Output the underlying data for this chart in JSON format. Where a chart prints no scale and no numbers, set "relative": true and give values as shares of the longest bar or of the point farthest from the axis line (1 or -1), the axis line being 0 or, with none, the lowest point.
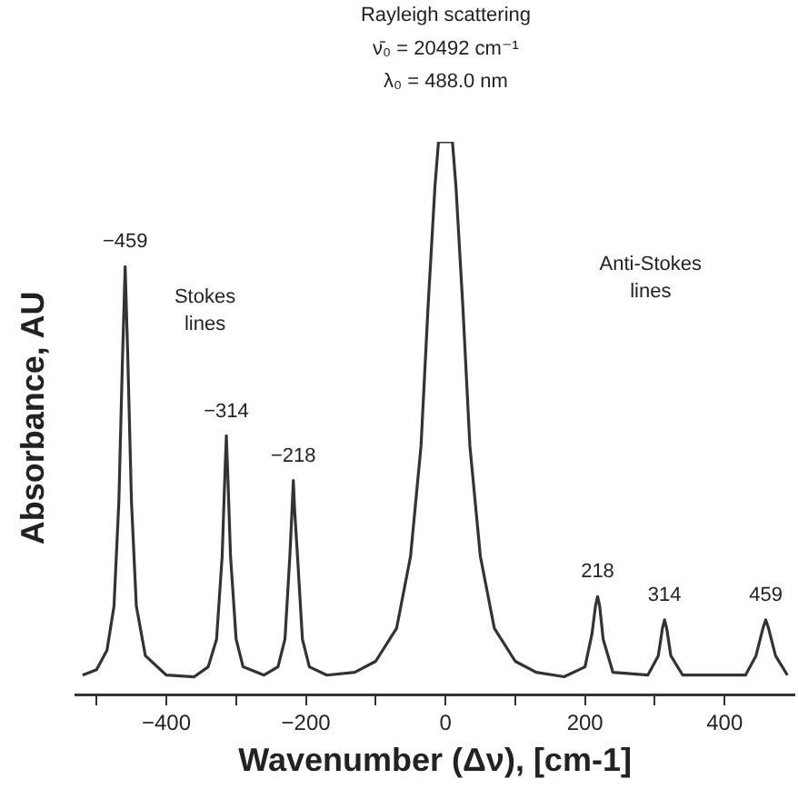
{
  "chart_data": {
    "type": "line",
    "relative": true,
    "xlabel": "Wavenumber (Δν), [cm-1]",
    "ylabel": "Absorbance, AU",
    "xlim": [
      -530,
      500
    ],
    "xticks": [
      {
        "value": -500,
        "label": null
      },
      -400,
      {
        "value": -300,
        "label": null
      },
      -200,
      {
        "value": -100,
        "label": null
      },
      0,
      {
        "value": 100,
        "label": null
      },
      200,
      {
        "value": 300,
        "label": null
      },
      400
    ],
    "x": [
      -520,
      -500,
      -485,
      -475,
      -468,
      -463,
      -459,
      -455,
      -450,
      -443,
      -430,
      -400,
      -360,
      -340,
      -328,
      -320,
      -316,
      -314,
      -312,
      -308,
      -300,
      -290,
      -260,
      -240,
      -230,
      -223,
      -220,
      -218,
      -216,
      -212,
      -205,
      -195,
      -170,
      -130,
      -100,
      -70,
      -50,
      -35,
      -25,
      -15,
      -10,
      10,
      15,
      25,
      35,
      50,
      70,
      100,
      130,
      170,
      200,
      210,
      215,
      218,
      221,
      226,
      240,
      290,
      305,
      311,
      314,
      317,
      323,
      340,
      430,
      445,
      455,
      459,
      463,
      473,
      490
    ],
    "series": [
      {
        "color": "#333333",
        "values": [
          0.035,
          0.045,
          0.08,
          0.16,
          0.35,
          0.6,
          0.774,
          0.6,
          0.35,
          0.16,
          0.07,
          0.035,
          0.032,
          0.05,
          0.1,
          0.25,
          0.4,
          0.468,
          0.4,
          0.25,
          0.1,
          0.05,
          0.035,
          0.05,
          0.1,
          0.25,
          0.33,
          0.387,
          0.33,
          0.25,
          0.1,
          0.05,
          0.035,
          0.04,
          0.06,
          0.12,
          0.25,
          0.45,
          0.7,
          0.92,
          1,
          1,
          0.92,
          0.7,
          0.45,
          0.25,
          0.12,
          0.06,
          0.04,
          0.032,
          0.05,
          0.11,
          0.16,
          0.177,
          0.16,
          0.1,
          0.04,
          0.035,
          0.07,
          0.12,
          0.135,
          0.12,
          0.07,
          0.035,
          0.035,
          0.07,
          0.12,
          0.135,
          0.12,
          0.07,
          0.035
        ]
      }
    ],
    "marker": "none",
    "line_style": "solid",
    "grid": false,
    "legend": false,
    "annotations": [
      "Rayleigh scattering",
      "ν̄₀ = 20492 cm⁻¹",
      "λ₀ = 488.0 nm",
      {
        "text": "−459",
        "x": -459,
        "y": 0.774
      },
      {
        "text": "−314",
        "x": -314,
        "y": 0.468
      },
      {
        "text": "−218",
        "x": -218,
        "y": 0.387
      },
      {
        "text": "218",
        "x": 218,
        "y": 0.177
      },
      {
        "text": "314",
        "x": 314,
        "y": 0.135
      },
      {
        "text": "459",
        "x": 459,
        "y": 0.135
      },
      "Stokes lines",
      "Anti-Stokes lines"
    ]
  }
}
